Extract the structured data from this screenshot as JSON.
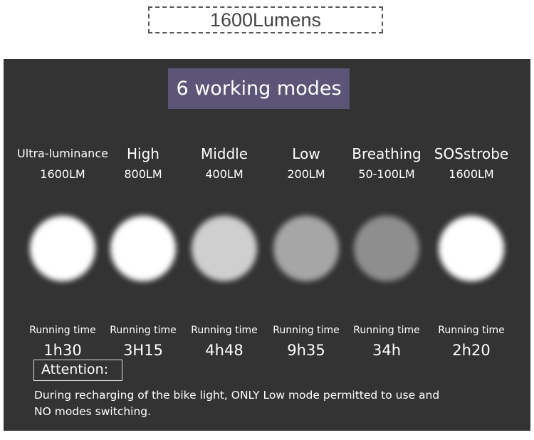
{
  "header": {
    "title": "1600Lumens"
  },
  "panel": {
    "title": "6 working modes",
    "running_label": "Running time",
    "modes": [
      {
        "name": "Ultra-luminance",
        "lumens": "1600LM",
        "time": "1h30",
        "color": "#ffffff"
      },
      {
        "name": "High",
        "lumens": "800LM",
        "time": "3H15",
        "color": "#ffffff"
      },
      {
        "name": "Middle",
        "lumens": "400LM",
        "time": "4h48",
        "color": "#cfcfcf"
      },
      {
        "name": "Low",
        "lumens": "200LM",
        "time": "9h35",
        "color": "#a6a6a6"
      },
      {
        "name": "Breathing",
        "lumens": "50-100LM",
        "time": "34h",
        "color": "#8e8e8e"
      },
      {
        "name": "SOSstrobe",
        "lumens": "1600LM",
        "time": "2h20",
        "color": "#ffffff"
      }
    ],
    "attention": {
      "label": "Attention:",
      "text_line1": "During recharging of the bike light, ONLY Low mode permitted to use and",
      "text_line2": "NO modes switching."
    }
  }
}
